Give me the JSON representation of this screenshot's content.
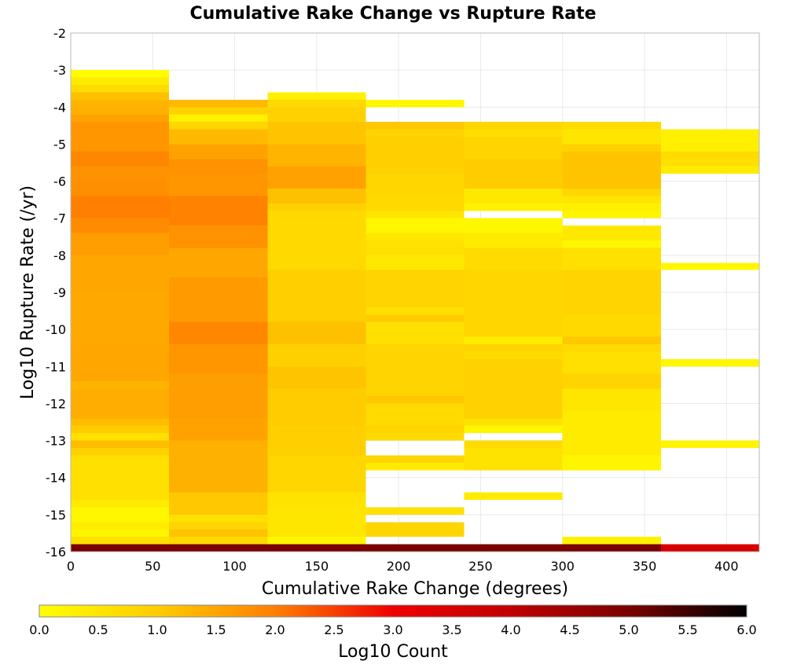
{
  "chart_data": {
    "type": "heatmap",
    "title": "Cumulative Rake Change vs Rupture Rate",
    "xlabel": "Cumulative Rake Change (degrees)",
    "ylabel": "Log10 Rupture Rate (/yr)",
    "xlim": [
      0,
      420
    ],
    "ylim": [
      -16,
      -2
    ],
    "x_ticks": [
      0,
      50,
      100,
      150,
      200,
      250,
      300,
      350,
      400
    ],
    "y_ticks": [
      -2,
      -3,
      -4,
      -5,
      -6,
      -7,
      -8,
      -9,
      -10,
      -11,
      -12,
      -13,
      -14,
      -15,
      -16
    ],
    "x_bin_width": 60,
    "y_bin_height": 0.2,
    "grid": true,
    "colorbar": {
      "label": "Log10 Count",
      "min": 0.0,
      "max": 6.0,
      "ticks": [
        "0.0",
        "0.5",
        "1.0",
        "1.5",
        "2.0",
        "2.5",
        "3.0",
        "3.5",
        "4.0",
        "4.5",
        "5.0",
        "5.5",
        "6.0"
      ],
      "position": "bottom",
      "stops": [
        {
          "v": 0.0,
          "color": "#ffff00"
        },
        {
          "v": 1.0,
          "color": "#ffcc00"
        },
        {
          "v": 2.0,
          "color": "#ff7f00"
        },
        {
          "v": 3.0,
          "color": "#ee0000"
        },
        {
          "v": 4.0,
          "color": "#c00000"
        },
        {
          "v": 5.0,
          "color": "#7a0000"
        },
        {
          "v": 6.0,
          "color": "#000000"
        }
      ]
    },
    "columns": [
      {
        "x": [
          0,
          60
        ],
        "cells": [
          [
            -3.0,
            -3.2,
            0.05
          ],
          [
            -3.2,
            -3.4,
            0.4
          ],
          [
            -3.4,
            -3.6,
            0.7
          ],
          [
            -3.6,
            -3.8,
            1.15
          ],
          [
            -3.8,
            -4.0,
            1.3
          ],
          [
            -4.0,
            -4.2,
            1.35
          ],
          [
            -4.2,
            -4.4,
            1.55
          ],
          [
            -4.4,
            -5.2,
            1.7
          ],
          [
            -5.2,
            -5.6,
            1.9
          ],
          [
            -5.6,
            -6.0,
            1.75
          ],
          [
            -6.0,
            -6.4,
            1.8
          ],
          [
            -6.4,
            -7.0,
            2.0
          ],
          [
            -7.0,
            -7.4,
            1.85
          ],
          [
            -7.4,
            -8.0,
            1.6
          ],
          [
            -8.0,
            -9.0,
            1.5
          ],
          [
            -9.0,
            -10.4,
            1.45
          ],
          [
            -10.4,
            -11.4,
            1.5
          ],
          [
            -11.4,
            -11.6,
            1.3
          ],
          [
            -11.6,
            -12.4,
            1.4
          ],
          [
            -12.4,
            -12.6,
            1.2
          ],
          [
            -12.6,
            -12.8,
            1.0
          ],
          [
            -12.8,
            -13.0,
            0.6
          ],
          [
            -13.0,
            -13.2,
            1.2
          ],
          [
            -13.2,
            -13.4,
            0.9
          ],
          [
            -13.4,
            -14.6,
            0.6
          ],
          [
            -14.6,
            -14.8,
            0.4
          ],
          [
            -14.8,
            -15.2,
            0.15
          ],
          [
            -15.2,
            -15.4,
            0.35
          ],
          [
            -15.4,
            -15.6,
            0.2
          ],
          [
            -15.6,
            -15.8,
            0.6
          ],
          [
            -15.8,
            -16.0,
            5.0
          ]
        ]
      },
      {
        "x": [
          60,
          120
        ],
        "cells": [
          [
            -3.8,
            -4.0,
            1.25
          ],
          [
            -4.0,
            -4.2,
            0.9
          ],
          [
            -4.2,
            -4.4,
            0.3
          ],
          [
            -4.4,
            -4.6,
            0.8
          ],
          [
            -4.6,
            -5.0,
            1.25
          ],
          [
            -5.0,
            -5.4,
            1.55
          ],
          [
            -5.4,
            -5.8,
            1.75
          ],
          [
            -5.8,
            -6.4,
            1.7
          ],
          [
            -6.4,
            -7.2,
            1.95
          ],
          [
            -7.2,
            -7.8,
            1.75
          ],
          [
            -7.8,
            -8.6,
            1.5
          ],
          [
            -8.6,
            -9.8,
            1.65
          ],
          [
            -9.8,
            -10.4,
            1.9
          ],
          [
            -10.4,
            -11.2,
            1.7
          ],
          [
            -11.2,
            -12.4,
            1.6
          ],
          [
            -12.4,
            -13.0,
            1.55
          ],
          [
            -13.0,
            -14.4,
            1.35
          ],
          [
            -14.4,
            -15.0,
            1.05
          ],
          [
            -15.0,
            -15.2,
            0.6
          ],
          [
            -15.2,
            -15.4,
            0.85
          ],
          [
            -15.4,
            -15.6,
            1.1
          ],
          [
            -15.6,
            -15.8,
            0.75
          ],
          [
            -15.8,
            -16.0,
            5.0
          ]
        ]
      },
      {
        "x": [
          120,
          180
        ],
        "cells": [
          [
            -3.6,
            -3.8,
            0.3
          ],
          [
            -3.8,
            -4.0,
            0.75
          ],
          [
            -4.0,
            -4.4,
            0.9
          ],
          [
            -4.4,
            -5.0,
            1.1
          ],
          [
            -5.0,
            -5.6,
            1.3
          ],
          [
            -5.6,
            -6.2,
            1.55
          ],
          [
            -6.2,
            -6.6,
            1.15
          ],
          [
            -6.6,
            -6.8,
            0.9
          ],
          [
            -6.8,
            -8.4,
            0.75
          ],
          [
            -8.4,
            -9.8,
            0.95
          ],
          [
            -9.8,
            -10.4,
            1.15
          ],
          [
            -10.4,
            -11.0,
            0.95
          ],
          [
            -11.0,
            -11.6,
            1.1
          ],
          [
            -11.6,
            -12.6,
            1.0
          ],
          [
            -12.6,
            -13.4,
            0.95
          ],
          [
            -13.4,
            -14.4,
            0.8
          ],
          [
            -14.4,
            -14.8,
            0.55
          ],
          [
            -14.8,
            -15.6,
            0.5
          ],
          [
            -15.6,
            -15.8,
            0.2
          ],
          [
            -15.8,
            -16.0,
            5.0
          ]
        ]
      },
      {
        "x": [
          180,
          240
        ],
        "cells": [
          [
            -3.8,
            -4.0,
            0.15
          ],
          [
            -4.4,
            -4.6,
            1.05
          ],
          [
            -4.6,
            -4.8,
            0.85
          ],
          [
            -4.8,
            -5.6,
            0.95
          ],
          [
            -5.6,
            -5.8,
            0.9
          ],
          [
            -5.8,
            -6.4,
            0.8
          ],
          [
            -6.4,
            -6.8,
            0.75
          ],
          [
            -6.8,
            -7.0,
            0.5
          ],
          [
            -7.0,
            -7.4,
            0.15
          ],
          [
            -7.4,
            -7.6,
            0.45
          ],
          [
            -7.6,
            -8.0,
            0.6
          ],
          [
            -8.0,
            -8.4,
            0.45
          ],
          [
            -8.4,
            -9.4,
            0.85
          ],
          [
            -9.4,
            -9.6,
            0.6
          ],
          [
            -9.6,
            -9.8,
            1.0
          ],
          [
            -9.8,
            -10.4,
            0.6
          ],
          [
            -10.4,
            -11.8,
            0.85
          ],
          [
            -11.8,
            -12.0,
            1.05
          ],
          [
            -12.0,
            -12.6,
            0.7
          ],
          [
            -12.6,
            -12.8,
            0.85
          ],
          [
            -12.8,
            -13.0,
            0.7
          ],
          [
            -13.4,
            -13.6,
            0.8
          ],
          [
            -13.6,
            -13.8,
            0.4
          ],
          [
            -14.8,
            -15.0,
            0.6
          ],
          [
            -15.2,
            -15.6,
            0.8
          ],
          [
            -15.8,
            -16.0,
            5.0
          ]
        ]
      },
      {
        "x": [
          240,
          300
        ],
        "cells": [
          [
            -4.4,
            -4.6,
            0.8
          ],
          [
            -4.6,
            -4.8,
            0.65
          ],
          [
            -4.8,
            -5.4,
            0.85
          ],
          [
            -5.4,
            -6.2,
            1.0
          ],
          [
            -6.2,
            -6.6,
            0.45
          ],
          [
            -6.6,
            -6.8,
            0.25
          ],
          [
            -7.0,
            -7.4,
            0.15
          ],
          [
            -7.4,
            -7.8,
            0.4
          ],
          [
            -7.8,
            -8.4,
            0.7
          ],
          [
            -8.4,
            -10.2,
            0.8
          ],
          [
            -10.2,
            -10.4,
            0.35
          ],
          [
            -10.4,
            -10.6,
            0.85
          ],
          [
            -10.6,
            -10.8,
            0.7
          ],
          [
            -10.8,
            -12.4,
            0.9
          ],
          [
            -12.4,
            -12.6,
            0.55
          ],
          [
            -12.6,
            -12.8,
            0.2
          ],
          [
            -13.0,
            -13.2,
            0.7
          ],
          [
            -13.2,
            -13.8,
            0.55
          ],
          [
            -14.4,
            -14.6,
            0.4
          ],
          [
            -15.8,
            -16.0,
            5.0
          ]
        ]
      },
      {
        "x": [
          300,
          360
        ],
        "cells": [
          [
            -4.4,
            -4.6,
            0.7
          ],
          [
            -4.6,
            -5.0,
            0.5
          ],
          [
            -5.0,
            -5.2,
            0.9
          ],
          [
            -5.2,
            -6.2,
            1.1
          ],
          [
            -6.2,
            -6.4,
            0.8
          ],
          [
            -6.4,
            -6.6,
            0.5
          ],
          [
            -6.6,
            -6.8,
            0.3
          ],
          [
            -6.8,
            -7.0,
            0.2
          ],
          [
            -7.2,
            -7.6,
            0.45
          ],
          [
            -7.6,
            -7.8,
            0.15
          ],
          [
            -7.8,
            -8.4,
            0.6
          ],
          [
            -8.4,
            -9.6,
            0.85
          ],
          [
            -9.6,
            -10.2,
            0.75
          ],
          [
            -10.2,
            -10.4,
            1.05
          ],
          [
            -10.4,
            -10.6,
            0.75
          ],
          [
            -10.6,
            -11.2,
            0.6
          ],
          [
            -11.2,
            -11.6,
            0.85
          ],
          [
            -11.6,
            -12.2,
            0.5
          ],
          [
            -12.2,
            -13.4,
            0.4
          ],
          [
            -13.4,
            -13.8,
            0.2
          ],
          [
            -15.6,
            -15.8,
            0.25
          ],
          [
            -15.8,
            -16.0,
            5.0
          ]
        ]
      },
      {
        "x": [
          360,
          420
        ],
        "cells": [
          [
            -4.6,
            -5.2,
            0.3
          ],
          [
            -5.2,
            -5.4,
            0.7
          ],
          [
            -5.4,
            -5.6,
            0.6
          ],
          [
            -5.6,
            -5.8,
            0.4
          ],
          [
            -8.2,
            -8.4,
            0.15
          ],
          [
            -10.8,
            -11.0,
            0.15
          ],
          [
            -13.0,
            -13.2,
            0.2
          ],
          [
            -15.8,
            -16.0,
            3.5
          ]
        ]
      }
    ]
  }
}
